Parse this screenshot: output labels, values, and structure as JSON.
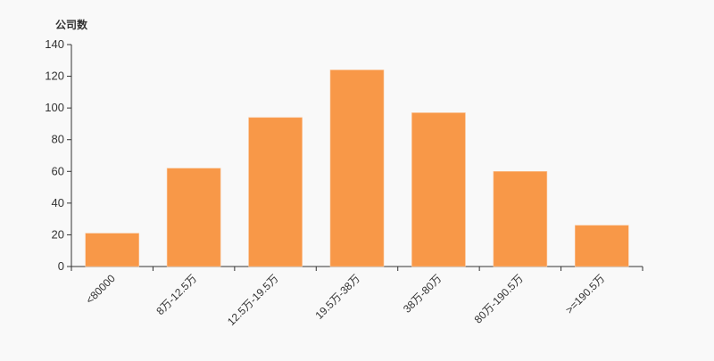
{
  "chart_data": {
    "type": "bar",
    "title": "",
    "ylabel": "公司数",
    "xlabel": "",
    "categories": [
      "<80000",
      "8万-12.5万",
      "12.5万-19.5万",
      "19.5万-38万",
      "38万-80万",
      "80万-190.5万",
      ">=190.5万"
    ],
    "values": [
      21,
      62,
      94,
      124,
      97,
      60,
      26
    ],
    "ylim": [
      0,
      140
    ],
    "yticks": [
      0,
      20,
      40,
      60,
      80,
      100,
      120,
      140
    ],
    "grid": false,
    "bar_color": "#f89848"
  }
}
